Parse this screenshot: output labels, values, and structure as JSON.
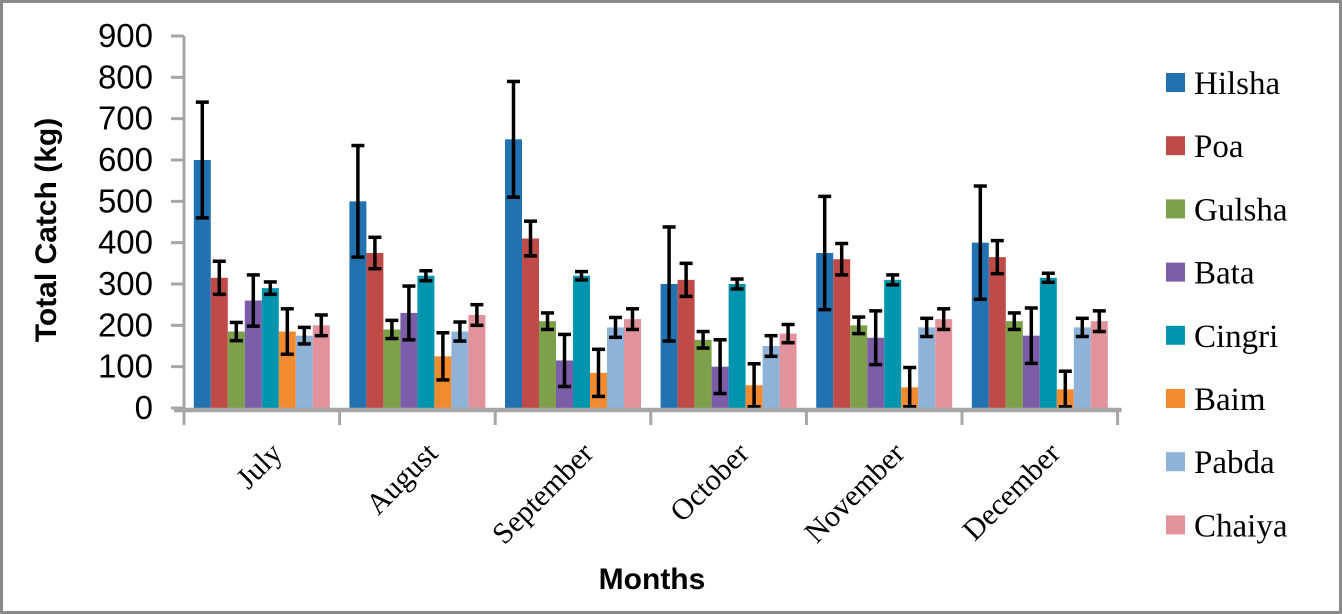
{
  "figure": {
    "background": "#ffffff",
    "border_color": "#8a8a8a"
  },
  "chart_data": {
    "type": "bar",
    "title": "",
    "xlabel": "Months",
    "ylabel": "Total Catch (kg)",
    "ylim": [
      0,
      900
    ],
    "yticks": [
      0,
      100,
      200,
      300,
      400,
      500,
      600,
      700,
      800,
      900
    ],
    "grid": false,
    "legend_position": "right",
    "error_bars": true,
    "axis_color": "#a6a6a6",
    "error_bar_color": "#000000",
    "categories": [
      "July",
      "August",
      "September",
      "October",
      "November",
      "December"
    ],
    "series": [
      {
        "name": "Hilsha",
        "color": "#2272b2",
        "values": [
          600,
          500,
          650,
          300,
          375,
          400
        ],
        "errors": [
          140,
          135,
          140,
          138,
          137,
          137
        ]
      },
      {
        "name": "Poa",
        "color": "#be4b48",
        "values": [
          315,
          375,
          410,
          310,
          360,
          365
        ],
        "errors": [
          40,
          38,
          42,
          40,
          38,
          40
        ]
      },
      {
        "name": "Gulsha",
        "color": "#7ca14a",
        "values": [
          185,
          190,
          210,
          165,
          200,
          210
        ],
        "errors": [
          22,
          22,
          20,
          20,
          20,
          20
        ]
      },
      {
        "name": "Bata",
        "color": "#7b5ea7",
        "values": [
          260,
          230,
          115,
          100,
          170,
          175
        ],
        "errors": [
          62,
          65,
          63,
          65,
          65,
          67
        ]
      },
      {
        "name": "Cingri",
        "color": "#0095af",
        "values": [
          290,
          320,
          320,
          300,
          310,
          315
        ],
        "errors": [
          15,
          12,
          10,
          12,
          12,
          11
        ]
      },
      {
        "name": "Baim",
        "color": "#f28a30",
        "values": [
          185,
          125,
          85,
          55,
          50,
          45
        ],
        "errors": [
          55,
          57,
          57,
          52,
          48,
          44
        ]
      },
      {
        "name": "Pabda",
        "color": "#8fb2d8",
        "values": [
          175,
          185,
          195,
          150,
          195,
          195
        ],
        "errors": [
          20,
          23,
          24,
          25,
          22,
          22
        ]
      },
      {
        "name": "Chaiya",
        "color": "#e2929b",
        "values": [
          200,
          225,
          215,
          180,
          215,
          210
        ],
        "errors": [
          25,
          25,
          25,
          22,
          25,
          25
        ]
      }
    ]
  }
}
